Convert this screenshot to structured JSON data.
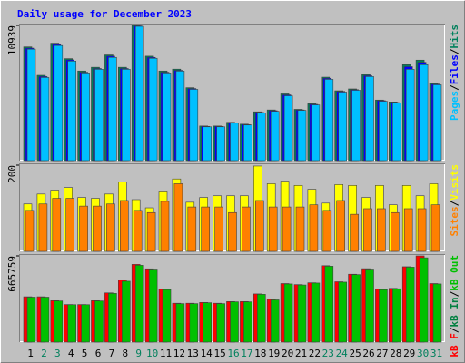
{
  "chart_data": [
    {
      "type": "bar",
      "title": "Daily usage for December 2023",
      "ylim": [
        0,
        10939
      ],
      "yticks": [
        10939
      ],
      "legend_reversed": true,
      "legend_separator": "/",
      "series": [
        {
          "name": "Hits",
          "color": "#00805c",
          "values": [
            9200,
            6900,
            9500,
            8250,
            7250,
            7550,
            8550,
            7550,
            10939,
            8450,
            7250,
            7400,
            5900,
            2800,
            2800,
            3100,
            2950,
            3950,
            4100,
            5400,
            4150,
            4600,
            6750,
            5650,
            5800,
            6950,
            4900,
            4750,
            7760,
            8130,
            6250
          ]
        },
        {
          "name": "Files",
          "color": "#0000ff",
          "values": [
            9100,
            6800,
            9400,
            8150,
            7150,
            7450,
            8450,
            7450,
            10900,
            8350,
            7150,
            7300,
            5830,
            2770,
            2770,
            3060,
            2910,
            3900,
            4040,
            5320,
            4100,
            4550,
            6660,
            5600,
            5740,
            6870,
            4850,
            4700,
            7600,
            7950,
            6190
          ]
        },
        {
          "name": "Pages",
          "color": "#00c0ff",
          "values": [
            9017,
            6725,
            9311,
            8055,
            7094,
            7390,
            8350,
            7390,
            10864,
            8277,
            7094,
            7242,
            5764,
            2734,
            2734,
            3030,
            2882,
            3843,
            3990,
            5247,
            4065,
            4508,
            6577,
            5543,
            5690,
            6799,
            4803,
            4656,
            7390,
            7760,
            6134
          ]
        }
      ]
    },
    {
      "type": "bar",
      "ylim": [
        0,
        200
      ],
      "yticks": [
        200
      ],
      "legend_reversed": true,
      "legend_separator": "/",
      "series": [
        {
          "name": "Visits",
          "color": "#ffff00",
          "values": [
            110,
            133,
            142,
            148,
            125,
            123,
            133,
            161,
            120,
            101,
            138,
            168,
            114,
            125,
            129,
            129,
            129,
            198,
            157,
            163,
            153,
            144,
            112,
            155,
            153,
            125,
            153,
            108,
            153,
            129,
            157
          ]
        },
        {
          "name": "Sites",
          "color": "#ff8000",
          "values": [
            95,
            110,
            123,
            123,
            105,
            105,
            110,
            118,
            95,
            90,
            116,
            157,
            103,
            103,
            103,
            90,
            103,
            118,
            103,
            103,
            103,
            108,
            95,
            118,
            86,
            99,
            99,
            90,
            99,
            99,
            108
          ]
        }
      ]
    },
    {
      "type": "bar",
      "ylim": [
        0,
        665759
      ],
      "yticks": [
        665759
      ],
      "legend_reversed": false,
      "legend_separator": "/",
      "categories": [
        "1",
        "2",
        "3",
        "4",
        "5",
        "6",
        "7",
        "8",
        "9",
        "10",
        "11",
        "12",
        "13",
        "14",
        "15",
        "16",
        "17",
        "18",
        "19",
        "20",
        "21",
        "22",
        "23",
        "24",
        "25",
        "26",
        "27",
        "28",
        "29",
        "30",
        "31"
      ],
      "category_colors": [
        "#000000",
        "#00805c",
        "#00805c",
        "#000000",
        "#000000",
        "#000000",
        "#000000",
        "#000000",
        "#00805c",
        "#00805c",
        "#000000",
        "#000000",
        "#000000",
        "#000000",
        "#000000",
        "#00805c",
        "#00805c",
        "#000000",
        "#000000",
        "#000000",
        "#000000",
        "#000000",
        "#00805c",
        "#00805c",
        "#000000",
        "#000000",
        "#000000",
        "#000000",
        "#000000",
        "#00805c",
        "#00805c"
      ],
      "series": [
        {
          "name": "kB F",
          "color": "#ff0000",
          "values": [
            350000,
            350000,
            320000,
            290000,
            290000,
            320000,
            380000,
            480000,
            600000,
            566000,
            408000,
            300000,
            300000,
            306000,
            300000,
            313000,
            313000,
            372000,
            330000,
            452000,
            444000,
            458000,
            590000,
            466000,
            524000,
            567000,
            408000,
            415000,
            582000,
            665759,
            452000
          ]
        },
        {
          "name": "kB In",
          "color": "#008040",
          "values": [
            0,
            0,
            0,
            0,
            0,
            0,
            0,
            0,
            0,
            0,
            0,
            0,
            0,
            0,
            0,
            0,
            0,
            0,
            0,
            0,
            0,
            0,
            0,
            0,
            0,
            0,
            0,
            0,
            0,
            0,
            0
          ]
        },
        {
          "name": "kB Out",
          "color": "#00c000",
          "values": [
            347000,
            347000,
            318000,
            289000,
            289000,
            318000,
            376000,
            470000,
            593000,
            564000,
            405000,
            297000,
            297000,
            304000,
            297000,
            311000,
            311000,
            369000,
            326000,
            449000,
            441000,
            456000,
            586000,
            463000,
            521000,
            564000,
            405000,
            412000,
            579000,
            651000,
            449000
          ]
        }
      ]
    }
  ]
}
